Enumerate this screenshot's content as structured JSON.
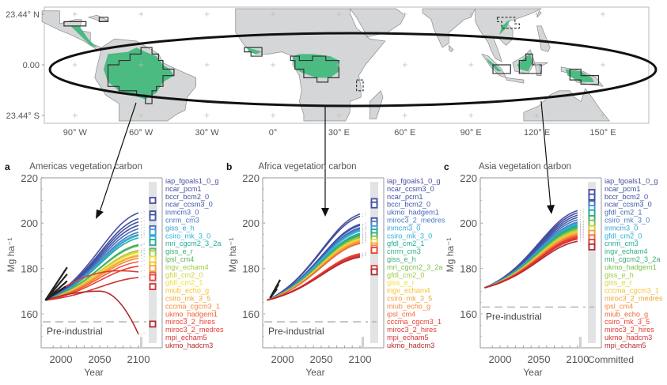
{
  "map": {
    "lat_labels": [
      "23.44° N",
      "0.00",
      "23.44° S"
    ],
    "lat_values": [
      23.44,
      0,
      -23.44
    ],
    "lon_labels": [
      "90° W",
      "60° W",
      "30° W",
      "0°",
      "30° E",
      "60° E",
      "90° E",
      "120° E",
      "150° E"
    ],
    "lon_values": [
      -90,
      -60,
      -30,
      0,
      30,
      60,
      90,
      120,
      150
    ],
    "colors": {
      "land": "#d4d6d8",
      "forest": "#3cb878",
      "ocean": "#ffffff",
      "outline": "#333333",
      "coast": "#8a8c8e"
    }
  },
  "chart_data": [
    {
      "type": "line",
      "panel": "a",
      "title": "Americas vegetation carbon",
      "xlabel": "Year",
      "ylabel": "Mg ha⁻¹",
      "xlim": [
        1980,
        2113
      ],
      "ylim": [
        146,
        220
      ],
      "xticks": [
        2000,
        2050,
        2100
      ],
      "yticks": [
        160,
        180,
        200,
        220
      ],
      "baseline": {
        "label": "Pre-industrial",
        "value": 156.5
      },
      "start": {
        "year": 1980,
        "value": 166
      },
      "committed_label": "",
      "legend": [
        "iap_fgoals1_0_g",
        "ncar_pcm1",
        "bccr_bcm2_0",
        "ncar_ccsm3_0",
        "inmcm3_0",
        "cnrm_cm3",
        "giss_e_h",
        "csiro_mk_3_0",
        "mri_cgcm2_3_2a",
        "giss_e_r",
        "ipsl_cm4",
        "ingv_echam4",
        "gfdl_cm2_0",
        "gfdl_cm2_1",
        "miub_echo_g",
        "csiro_mk_3_5",
        "cccma_cgcm3_1",
        "ukmo_hadgem1",
        "miroc3_2_hires",
        "miroc3_2_medres",
        "mpi_echam5",
        "ukmo_hadcm3"
      ],
      "legend_colors": [
        "#4a4f9e",
        "#404d9c",
        "#3f51a3",
        "#3d55aa",
        "#4a68b5",
        "#4a7cc2",
        "#39a0d6",
        "#2eb3d6",
        "#23ab9c",
        "#3bab74",
        "#5bb555",
        "#9ecb45",
        "#cfd43b",
        "#f2dc3a",
        "#f7c12e",
        "#f6a336",
        "#f58a3d",
        "#ee5f3b",
        "#e84234",
        "#e23b35",
        "#d43437",
        "#b52a2f"
      ],
      "series_end_values": [
        204.5,
        202,
        200.5,
        199,
        197.5,
        196,
        195,
        194.5,
        193.5,
        190.5,
        190,
        188,
        187.5,
        187,
        186,
        185.5,
        184.5,
        183,
        181,
        178.5,
        176,
        151
      ],
      "series_peak": [
        null,
        null,
        null,
        null,
        null,
        null,
        null,
        null,
        null,
        null,
        null,
        null,
        null,
        null,
        null,
        null,
        null,
        null,
        null,
        179,
        null,
        170
      ],
      "committed_values": [
        210,
        204,
        202.5,
        197.5,
        196,
        193,
        191.5,
        187.5,
        186.5,
        184,
        181.5,
        180,
        177,
        176,
        172,
        155.5
      ],
      "obs_lines": [
        [
          1980,
          166,
          2008,
          180.5
        ],
        [
          1980,
          166,
          2008,
          177.5
        ],
        [
          1980,
          166,
          2008,
          174.5
        ],
        [
          1980,
          166,
          2006,
          172
        ]
      ]
    },
    {
      "type": "line",
      "panel": "b",
      "title": "Africa vegetation carbon",
      "xlabel": "Year",
      "ylabel": "Mg ha⁻¹",
      "xlim": [
        1980,
        2113
      ],
      "ylim": [
        146,
        220
      ],
      "xticks": [
        2000,
        2050,
        2100
      ],
      "yticks": [
        160,
        180,
        200,
        220
      ],
      "baseline": {
        "label": "Pre-industrial",
        "value": 156.5
      },
      "start": {
        "year": 1980,
        "value": 166
      },
      "committed_label": "",
      "legend": [
        "iap_fgoals1_0_g",
        "ncar_ccsm3_0",
        "ncar_pcm1",
        "bccr_bcm2_0",
        "ukmo_hadgem1",
        "miroc3_2_medres",
        "inmcm3_0",
        "csiro_mk_3_0",
        "gfdl_cm2_1",
        "cnrm_cm3",
        "giss_e_h",
        "mri_cgcm2_3_2a",
        "gfdl_cm2_0",
        "giss_e_r",
        "ingv_echam4",
        "csiro_mk_3_5",
        "miub_echo_g",
        "ipsl_cm4",
        "cccma_cgcm3_1",
        "miroc3_2_hires",
        "mpi_echam5",
        "ukmo_hadcm3"
      ],
      "legend_colors": [
        "#4a4f9e",
        "#404d9c",
        "#3f51a3",
        "#3d55aa",
        "#4a68b5",
        "#4a7cc2",
        "#39a0d6",
        "#2eb3d6",
        "#23ab9c",
        "#2fae85",
        "#3bab74",
        "#7cc04d",
        "#9ecb45",
        "#f2dc3a",
        "#f7c12e",
        "#f6a336",
        "#f58a3d",
        "#ee6a3b",
        "#e84234",
        "#e23b35",
        "#d43437",
        "#b52a2f"
      ],
      "series_end_values": [
        204,
        203,
        199.5,
        199,
        198,
        197.5,
        197,
        196.5,
        195.5,
        195,
        194.5,
        194,
        193.5,
        193,
        192.5,
        192,
        191.5,
        191,
        186.5,
        186,
        185.5,
        185
      ],
      "committed_values": [
        209.5,
        208,
        201,
        199.5,
        197.5,
        196,
        194.5,
        193,
        191.5,
        190,
        189,
        188,
        180,
        178.5
      ],
      "obs_lines": [
        [
          1984,
          167,
          1997,
          175
        ],
        [
          1984,
          167,
          1995,
          173
        ],
        [
          1984,
          167,
          1993,
          171
        ]
      ]
    },
    {
      "type": "line",
      "panel": "c",
      "title": "Asia vegetation carbon",
      "xlabel": "Year",
      "ylabel": "Mg ha⁻¹",
      "xlim": [
        1980,
        2113
      ],
      "ylim": [
        146,
        220
      ],
      "xticks": [
        2000,
        2050,
        2100
      ],
      "yticks": [
        160,
        180,
        200,
        220
      ],
      "baseline": {
        "label": "Pre-industrial",
        "value": 163
      },
      "start": {
        "year": 1980,
        "value": 171.5
      },
      "committed_label": "Committed",
      "legend": [
        "iap_fgoals1_0_g",
        "ncar_pcm1",
        "bccr_bcm2_0",
        "ncar_ccsm3_0",
        "gfdl_cm2_1",
        "csiro_mk_3_0",
        "inmcm3_0",
        "gfdl_cm2_0",
        "cnrm_cm3",
        "ingv_echam4",
        "mri_cgcm2_3_2a",
        "ukmo_hadgem1",
        "giss_e_h",
        "giss_e_r",
        "cccma_cgcm3_1",
        "miroc3_2_medres",
        "ipsl_cm4",
        "miub_echo_g",
        "csiro_mk_3_5",
        "miroc3_2_hires",
        "ukmo_hadcm3",
        "mpi_echam5"
      ],
      "legend_colors": [
        "#4a4f9e",
        "#404d9c",
        "#3f51a3",
        "#3d55aa",
        "#4a68b5",
        "#4a7cc2",
        "#39a0d6",
        "#2eb3d6",
        "#23ab9c",
        "#2fae85",
        "#3bab74",
        "#7cc04d",
        "#9ecb45",
        "#d7d43b",
        "#f2c43a",
        "#f6a336",
        "#f58a3d",
        "#ee6a3b",
        "#e84234",
        "#e23b35",
        "#d43437",
        "#b52a2f"
      ],
      "series_end_values": [
        205.5,
        204.5,
        203.5,
        202.5,
        201.5,
        200.5,
        200,
        199.5,
        199,
        198.5,
        198,
        197.5,
        197,
        196.5,
        196,
        195.5,
        195,
        194.5,
        194,
        193.5,
        193,
        192
      ],
      "committed_values": [
        213.5,
        211.5,
        208.5,
        206.5,
        204.5,
        202,
        200,
        197.5,
        195.5,
        193.5,
        191.5,
        189.5
      ],
      "obs_lines": []
    }
  ]
}
